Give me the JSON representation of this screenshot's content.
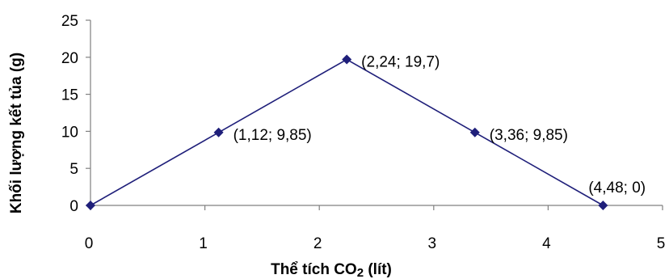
{
  "chart_data": {
    "type": "line",
    "title": "",
    "xlabel": {
      "prefix": "Thể tích CO",
      "subscript": "2",
      "suffix": " (lít)"
    },
    "ylabel": "Khối lượng kết tủa (g)",
    "xlim": [
      0,
      5
    ],
    "ylim": [
      0,
      25
    ],
    "x_ticks": [
      0,
      1,
      2,
      3,
      4,
      5
    ],
    "y_ticks": [
      0,
      5,
      10,
      15,
      20,
      25
    ],
    "grid": false,
    "legend": "none",
    "series": [
      {
        "color": "#1f1f7a",
        "marker": "diamond",
        "points": [
          {
            "x": 0,
            "y": 0,
            "label": ""
          },
          {
            "x": 1.12,
            "y": 9.85,
            "label": "(1,12; 9,85)"
          },
          {
            "x": 2.24,
            "y": 19.7,
            "label": "(2,24; 19,7)"
          },
          {
            "x": 3.36,
            "y": 9.85,
            "label": "(3,36; 9,85)"
          },
          {
            "x": 4.48,
            "y": 0,
            "label": "(4,48; 0)"
          }
        ]
      }
    ]
  }
}
